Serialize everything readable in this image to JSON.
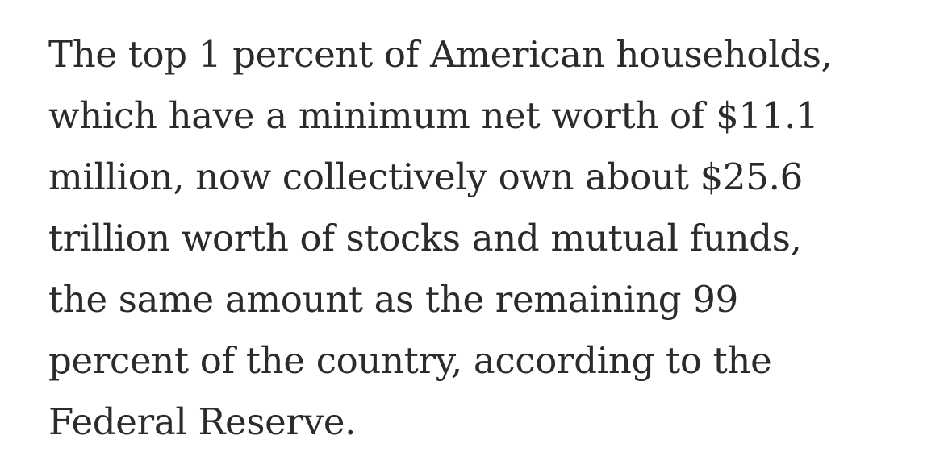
{
  "article": {
    "lines": [
      "The top 1 percent of American households,",
      "which have a minimum net worth of $11.1",
      "million, now collectively own about $25.6",
      "trillion worth of stocks and mutual funds,",
      "the same amount as the remaining 99",
      "percent of the country, according to the",
      "Federal Reserve."
    ]
  }
}
